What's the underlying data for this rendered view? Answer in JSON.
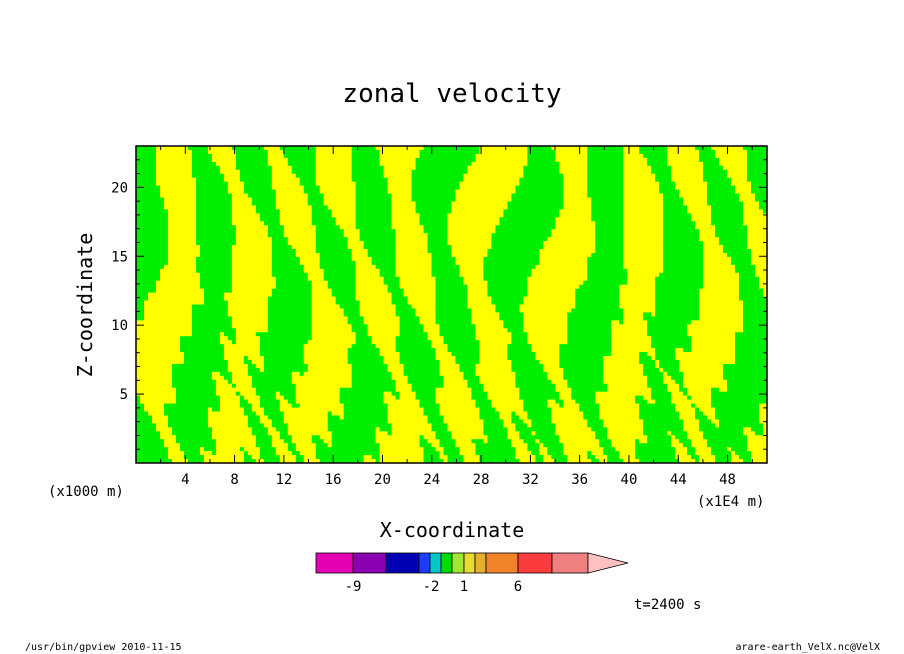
{
  "chart_data": {
    "type": "heatmap",
    "title": "zonal velocity",
    "xlabel": "X-coordinate",
    "ylabel": "Z-coordinate",
    "x_unit_label": "(x1000 m)",
    "x_scale_label": "(x1E4 m)",
    "x_ticks": [
      4,
      8,
      12,
      16,
      20,
      24,
      28,
      32,
      36,
      40,
      44,
      48
    ],
    "x_ticks_labels": [
      "4",
      "8",
      "12",
      "16",
      "20",
      "24",
      "28",
      "32",
      "36",
      "40",
      "44",
      "48"
    ],
    "xlim": [
      0,
      51.2
    ],
    "y_ticks": [
      5,
      10,
      15,
      20
    ],
    "y_ticks_labels": [
      "5",
      "10",
      "15",
      "20"
    ],
    "ylim": [
      0,
      23
    ],
    "fill_colors": [
      "#ffff00",
      "#00ee00"
    ],
    "colorbar": {
      "colors": [
        "#e600b4",
        "#8c00b4",
        "#0000b4",
        "#1e3cff",
        "#00c8c8",
        "#00dc00",
        "#a0e632",
        "#e6dc32",
        "#e6af2d",
        "#f08228",
        "#fa3c3c",
        "#f08080",
        "#ffc0c0"
      ],
      "tick_labels": [
        "-9",
        "-2",
        "1",
        "6"
      ]
    },
    "time_label": "t=2400 s"
  },
  "footer": {
    "left": "/usr/bin/gpview  2010-11-15",
    "right": "arare-earth_VelX.nc@VelX"
  }
}
